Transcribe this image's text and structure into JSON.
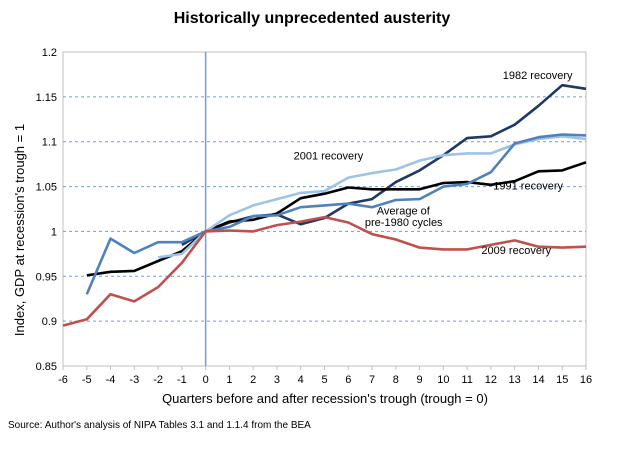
{
  "chart_data": {
    "type": "line",
    "title": "Historically unprecedented austerity",
    "xlabel": "Quarters before and after recession's trough (trough = 0)",
    "ylabel": "Index, GDP at recession's trough = 1",
    "source": "Source: Author's analysis of NIPA Tables 3.1 and 1.1.4 from the BEA",
    "xlim": [
      -6,
      16
    ],
    "ylim": [
      0.85,
      1.2
    ],
    "x_ticks": [
      -6,
      -5,
      -4,
      -3,
      -2,
      -1,
      0,
      1,
      2,
      3,
      4,
      5,
      6,
      7,
      8,
      9,
      10,
      11,
      12,
      13,
      14,
      15,
      16
    ],
    "y_ticks": [
      0.85,
      0.9,
      0.95,
      1,
      1.05,
      1.1,
      1.15,
      1.2
    ],
    "y_tick_labels": [
      "0.85",
      "0.9",
      "0.95",
      "1",
      "1.05",
      "1.1",
      "1.15",
      "1.2"
    ],
    "grid": "horizontal dashed",
    "trough_line_x": 0,
    "series": [
      {
        "name": "1982 recovery",
        "color": "#1f3864",
        "x": [
          -1,
          0,
          1,
          2,
          3,
          4,
          5,
          6,
          7,
          8,
          9,
          10,
          11,
          12,
          13,
          14,
          15,
          16
        ],
        "values": [
          0.985,
          1.0,
          1.01,
          1.017,
          1.019,
          1.008,
          1.015,
          1.031,
          1.036,
          1.055,
          1.068,
          1.085,
          1.104,
          1.106,
          1.119,
          1.14,
          1.163,
          1.159
        ]
      },
      {
        "name": "1991 recovery",
        "color": "#000000",
        "x": [
          -5,
          -4,
          -3,
          -2,
          -1,
          0,
          1,
          2,
          3,
          4,
          5,
          6,
          7,
          8,
          9,
          10,
          11,
          12,
          13,
          14,
          15,
          16
        ],
        "values": [
          0.951,
          0.955,
          0.956,
          0.967,
          0.978,
          1.0,
          1.011,
          1.013,
          1.02,
          1.037,
          1.042,
          1.049,
          1.047,
          1.047,
          1.047,
          1.054,
          1.055,
          1.052,
          1.056,
          1.067,
          1.068,
          1.077
        ]
      },
      {
        "name": "2001 recovery",
        "color": "#9dc3e6",
        "x": [
          -2,
          -1,
          0,
          1,
          2,
          3,
          4,
          5,
          6,
          7,
          8,
          9,
          10,
          11,
          12,
          13,
          14,
          15,
          16
        ],
        "values": [
          0.971,
          0.975,
          1.0,
          1.018,
          1.029,
          1.036,
          1.043,
          1.045,
          1.06,
          1.065,
          1.069,
          1.079,
          1.085,
          1.087,
          1.087,
          1.097,
          1.103,
          1.106,
          1.103
        ]
      },
      {
        "name": "Average of pre-1980 cycles",
        "color": "#4f81bd",
        "x": [
          -5,
          -4,
          -3,
          -2,
          -1,
          0,
          1,
          2,
          3,
          4,
          5,
          6,
          7,
          8,
          9,
          10,
          11,
          12,
          13,
          14,
          15,
          16
        ],
        "values": [
          0.93,
          0.992,
          0.976,
          0.988,
          0.988,
          1.0,
          1.005,
          1.017,
          1.018,
          1.027,
          1.029,
          1.031,
          1.027,
          1.035,
          1.036,
          1.05,
          1.053,
          1.066,
          1.098,
          1.105,
          1.108,
          1.107
        ]
      },
      {
        "name": "2009 recovery",
        "color": "#c0504d",
        "x": [
          -6,
          -5,
          -4,
          -3,
          -2,
          -1,
          0,
          1,
          2,
          3,
          4,
          5,
          6,
          7,
          8,
          9,
          10,
          11,
          12,
          13,
          14,
          15,
          16
        ],
        "values": [
          0.895,
          0.902,
          0.93,
          0.922,
          0.938,
          0.965,
          1.0,
          1.001,
          1.0,
          1.007,
          1.011,
          1.016,
          1.01,
          0.997,
          0.991,
          0.982,
          0.98,
          0.98,
          0.985,
          0.99,
          0.983,
          0.982,
          0.983
        ]
      }
    ],
    "annotations": [
      {
        "text": "1982 recovery",
        "x": 12.5,
        "y": 1.17
      },
      {
        "text": "2001 recovery",
        "x": 3.7,
        "y": 1.08
      },
      {
        "text": "1991 recovery",
        "x": 12.1,
        "y": 1.047
      },
      {
        "text": "Average of",
        "x": 7.2,
        "y": 1.019
      },
      {
        "text": "pre-1980 cycles",
        "x": 6.7,
        "y": 1.006
      },
      {
        "text": "2009 recovery",
        "x": 11.6,
        "y": 0.975
      }
    ]
  }
}
